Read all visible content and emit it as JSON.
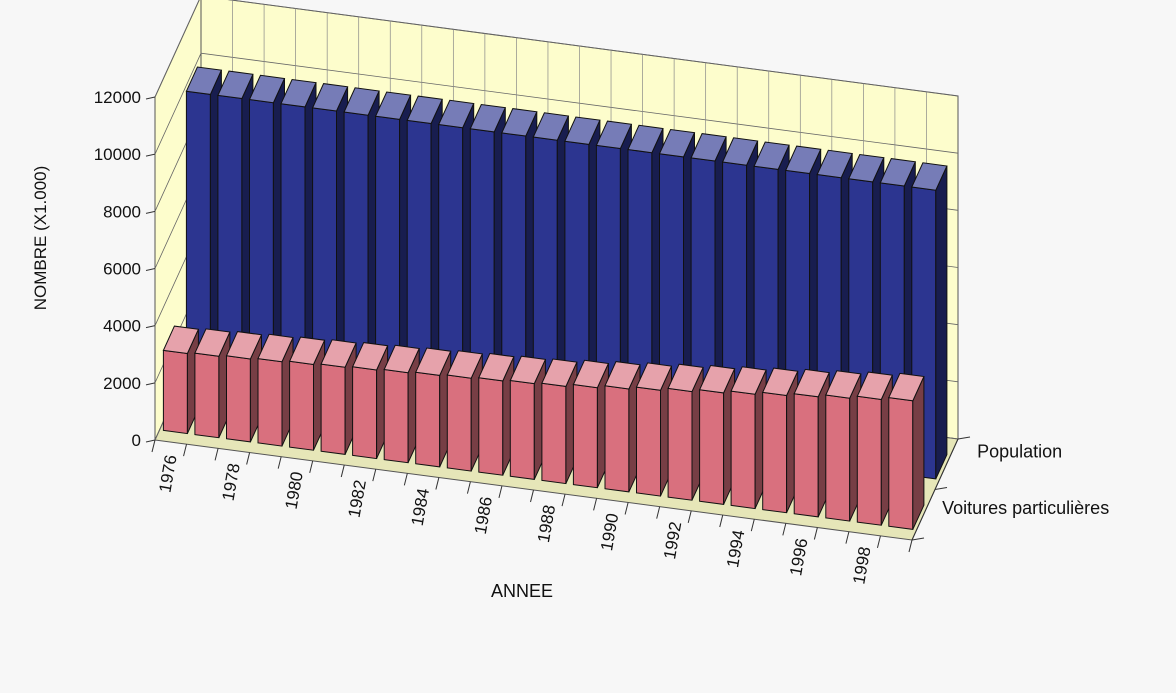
{
  "chart_data": {
    "type": "bar",
    "view": "3d",
    "ylabel": "NOMBRE (X1.000)",
    "xlabel": "ANNEE",
    "ylim": [
      0,
      12000
    ],
    "yticks": [
      0,
      2000,
      4000,
      6000,
      8000,
      10000,
      12000
    ],
    "categories": [
      "1976",
      "1977",
      "1978",
      "1979",
      "1980",
      "1981",
      "1982",
      "1983",
      "1984",
      "1985",
      "1986",
      "1987",
      "1988",
      "1989",
      "1990",
      "1991",
      "1992",
      "1993",
      "1994",
      "1995",
      "1996",
      "1997",
      "1998",
      "1999"
    ],
    "xtick_labels": [
      "1976",
      "",
      "1978",
      "",
      "1980",
      "",
      "1982",
      "",
      "1984",
      "",
      "1986",
      "",
      "1988",
      "",
      "1990",
      "",
      "1992",
      "",
      "1994",
      "",
      "1996",
      "",
      "1998",
      ""
    ],
    "series": [
      {
        "name": "Population",
        "color": "#2c3590",
        "values": [
          10100,
          10100,
          10100,
          10100,
          10100,
          10100,
          10100,
          10100,
          10100,
          10100,
          10100,
          10100,
          10100,
          10100,
          10100,
          10100,
          10100,
          10100,
          10100,
          10100,
          10100,
          10100,
          10100,
          10100
        ]
      },
      {
        "name": "Voitures particulières",
        "color": "#d9707e",
        "values": [
          2800,
          2850,
          2900,
          2950,
          3000,
          3050,
          3100,
          3150,
          3200,
          3250,
          3300,
          3350,
          3400,
          3500,
          3600,
          3700,
          3800,
          3900,
          4000,
          4100,
          4200,
          4300,
          4400,
          4500
        ]
      }
    ],
    "grid": true,
    "wall_color": "#fdfdcc",
    "legend": "depth-axis-right"
  }
}
